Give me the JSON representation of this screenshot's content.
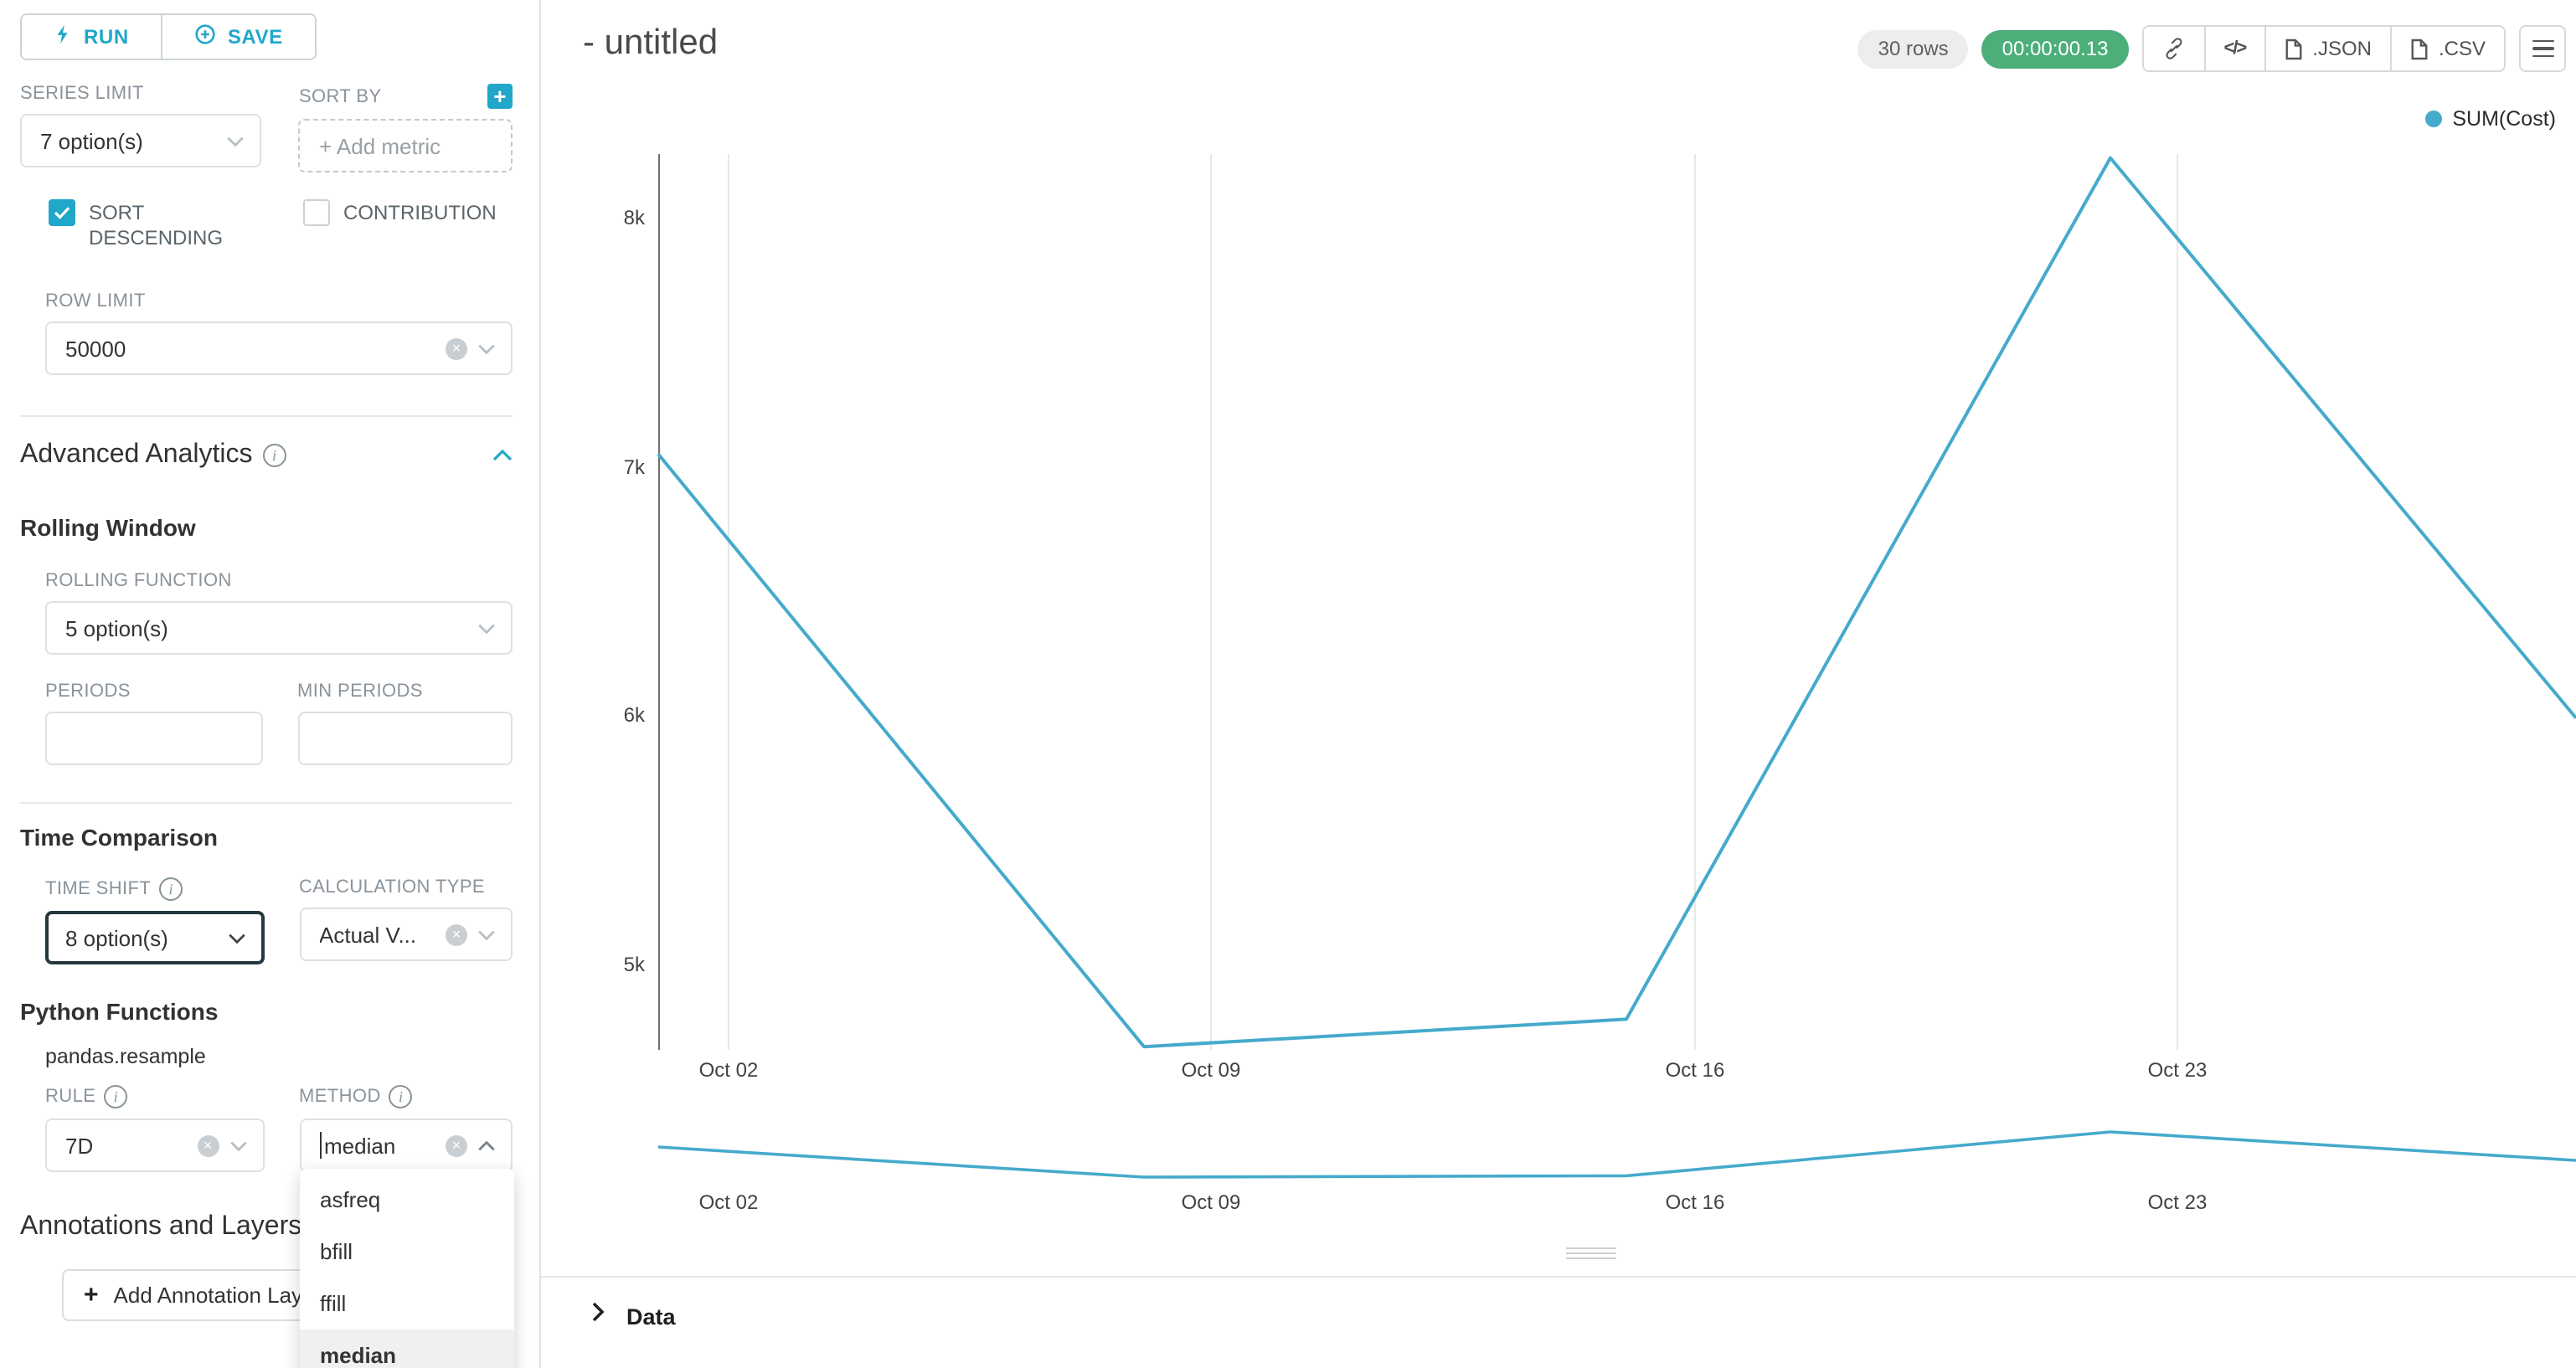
{
  "colors": {
    "accent": "#20a7c9",
    "success": "#4caf7a",
    "line": "#45aacb",
    "focus_border": "#253840"
  },
  "icons": {
    "plus": "+",
    "clear": "×",
    "code": "</>"
  },
  "sidebar": {
    "run_button": "RUN",
    "save_button": "SAVE",
    "series_limit_label": "SERIES LIMIT",
    "series_limit_value": "7 option(s)",
    "sort_by_label": "SORT BY",
    "sort_by_placeholder": "+ Add metric",
    "sort_descending_label": "SORT DESCENDING",
    "sort_descending_checked": true,
    "contribution_label": "CONTRIBUTION",
    "contribution_checked": false,
    "row_limit_label": "ROW LIMIT",
    "row_limit_value": "50000",
    "advanced_analytics_title": "Advanced Analytics",
    "rolling_window_title": "Rolling Window",
    "rolling_function_label": "ROLLING FUNCTION",
    "rolling_function_value": "5 option(s)",
    "periods_label": "PERIODS",
    "min_periods_label": "MIN PERIODS",
    "time_comparison_title": "Time Comparison",
    "time_shift_label": "TIME SHIFT",
    "time_shift_value": "8 option(s)",
    "calculation_type_label": "CALCULATION TYPE",
    "calculation_type_value": "Actual V...",
    "python_functions_title": "Python Functions",
    "python_functions_subtitle": "pandas.resample",
    "rule_label": "RULE",
    "rule_value": "7D",
    "method_label": "METHOD",
    "method_value": "median",
    "method_options": [
      "asfreq",
      "bfill",
      "ffill",
      "median"
    ],
    "method_selected_option": "median",
    "annotations_title": "Annotations and Layers",
    "add_annotation_button": "Add Annotation Layer"
  },
  "header": {
    "title": "- untitled",
    "rows_badge": "30 rows",
    "timer": "00:00:00.13",
    "json_button": ".JSON",
    "csv_button": ".CSV"
  },
  "chart_data": {
    "type": "line",
    "title": "",
    "series": [
      {
        "name": "SUM(Cost)",
        "values": [
          7050,
          4670,
          4780,
          8240,
          5990
        ]
      }
    ],
    "x_ticklabels": [
      "Oct 02",
      "Oct 09",
      "Oct 16",
      "Oct 23"
    ],
    "y_ticklabels": [
      "8k",
      "7k",
      "6k",
      "5k"
    ],
    "y_tickvalues": [
      8000,
      7000,
      6000,
      5000
    ],
    "ylim": [
      4500,
      8400
    ],
    "legend": [
      "SUM(Cost)"
    ],
    "legend_position": "top-right",
    "grid": "vertical-gridlines-only",
    "line_color": "#45aacb",
    "overview_axis": true
  },
  "data_panel": {
    "title": "Data"
  }
}
